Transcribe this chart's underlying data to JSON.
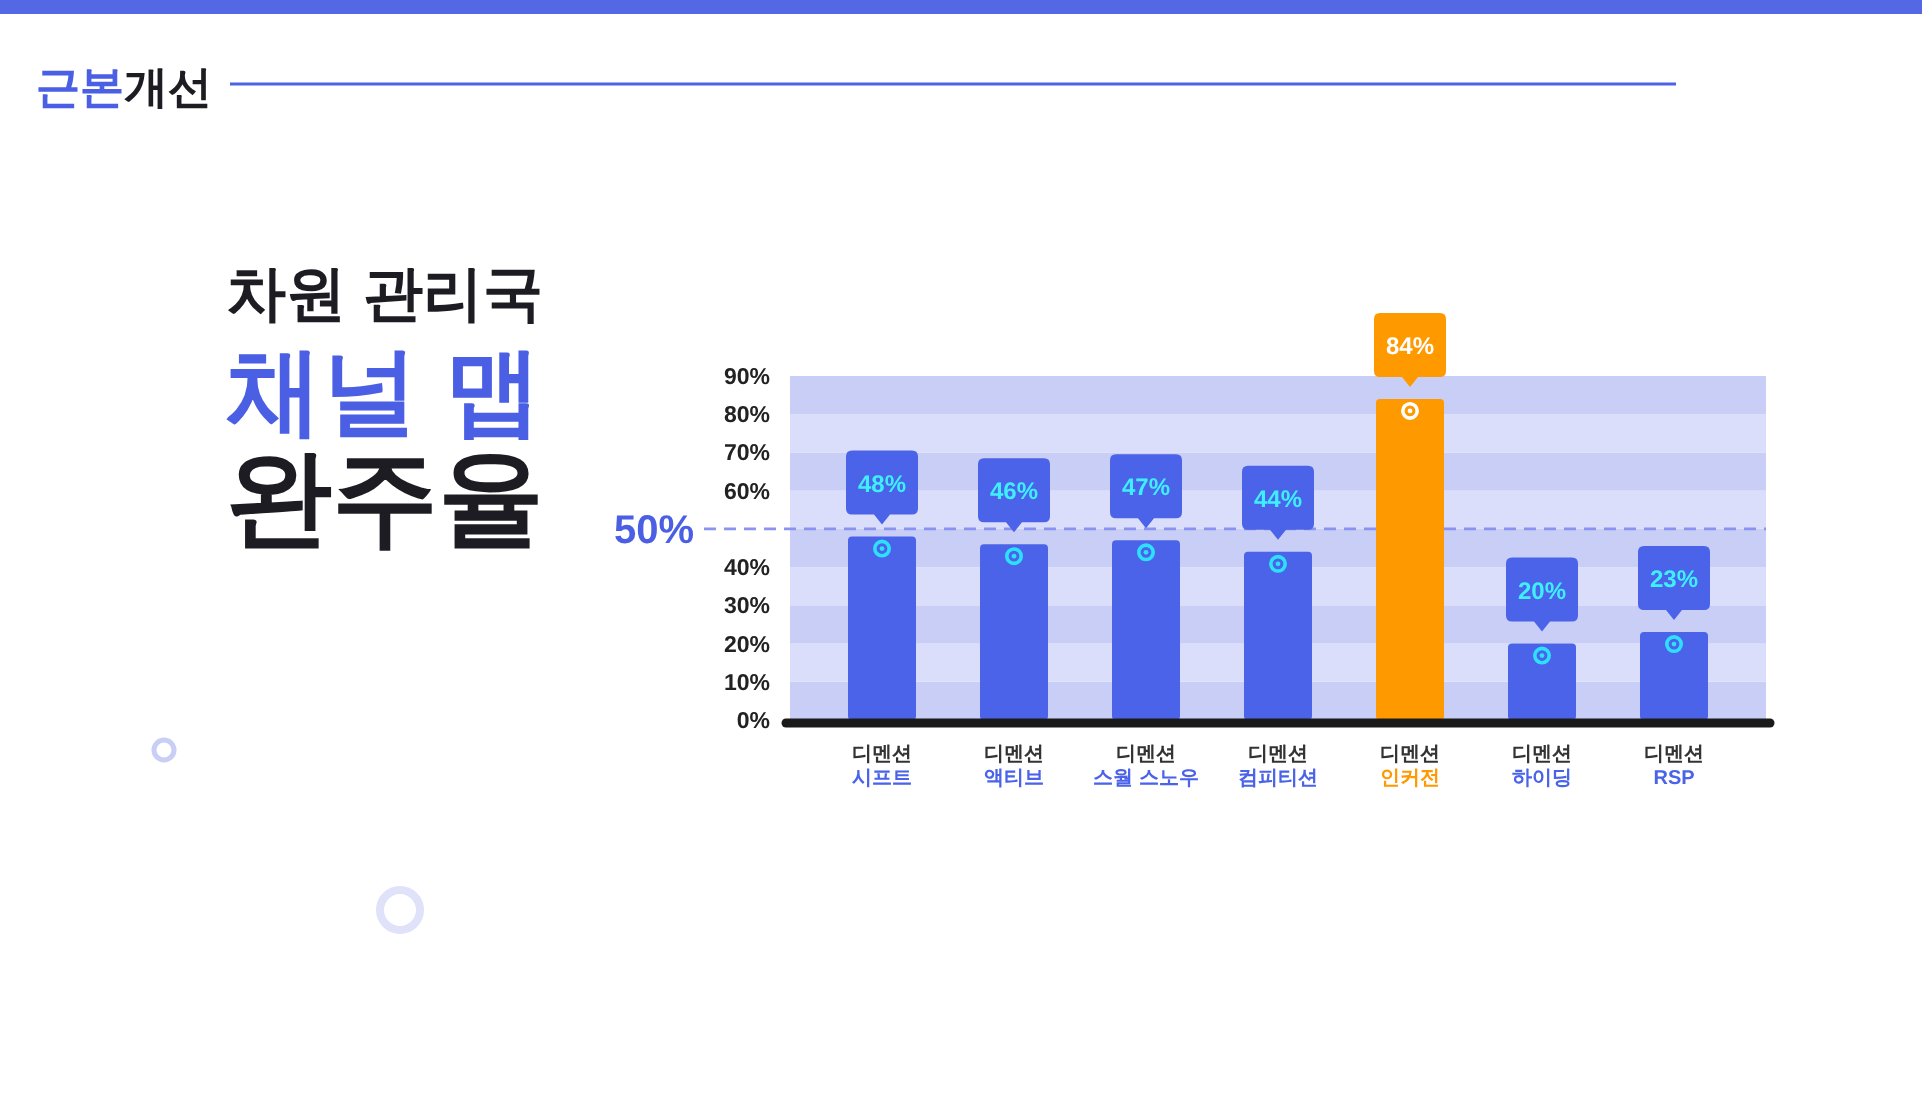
{
  "chart_data": {
    "type": "bar",
    "title": "차원 관리국\n채널 맵\n완주율",
    "annotations": [
      "근본개선"
    ],
    "categories": [
      "디멘션\n시프트",
      "디멘션\n액티브",
      "디멘션\n스월 스노우",
      "디멘션\n컴피티션",
      "디멘션\n인커전",
      "디멘션\n하이딩",
      "디멘션\nRSP"
    ],
    "values": [
      48,
      46,
      47,
      44,
      84,
      20,
      23
    ],
    "value_labels": [
      "48%",
      "46%",
      "47%",
      "44%",
      "84%",
      "20%",
      "23%"
    ],
    "colors": [
      "#4a63e8",
      "#4a63e8",
      "#4a63e8",
      "#4a63e8",
      "#ff9900",
      "#4a63e8",
      "#4a63e8"
    ],
    "ylim": [
      0,
      90
    ],
    "yticks": [
      {
        "value": 0,
        "label": "0%"
      },
      {
        "value": 10,
        "label": "10%"
      },
      {
        "value": 20,
        "label": "20%"
      },
      {
        "value": 30,
        "label": "30%"
      },
      {
        "value": 40,
        "label": "40%"
      },
      {
        "value": 60,
        "label": "60%"
      },
      {
        "value": 70,
        "label": "70%"
      },
      {
        "value": 80,
        "label": "80%"
      },
      {
        "value": 90,
        "label": "90%"
      }
    ],
    "bands": [
      {
        "axis": "y",
        "from": 0,
        "to": 10,
        "color": "#c9cef7"
      },
      {
        "axis": "y",
        "from": 10,
        "to": 20,
        "color": "#dadefa"
      },
      {
        "axis": "y",
        "from": 20,
        "to": 30,
        "color": "#c9cef7"
      },
      {
        "axis": "y",
        "from": 30,
        "to": 40,
        "color": "#dadefa"
      },
      {
        "axis": "y",
        "from": 40,
        "to": 50,
        "color": "#c9cef7"
      },
      {
        "axis": "y",
        "from": 50,
        "to": 60,
        "color": "#dadefa"
      },
      {
        "axis": "y",
        "from": 60,
        "to": 70,
        "color": "#c9cef7"
      },
      {
        "axis": "y",
        "from": 70,
        "to": 80,
        "color": "#dadefa"
      },
      {
        "axis": "y",
        "from": 80,
        "to": 90,
        "color": "#c9cef7"
      }
    ],
    "ref_lines": [
      {
        "axis": "y",
        "value": 50,
        "label": "50%",
        "color": "#8a93ef",
        "line_style": "dashed"
      }
    ],
    "marker": "circle"
  }
}
